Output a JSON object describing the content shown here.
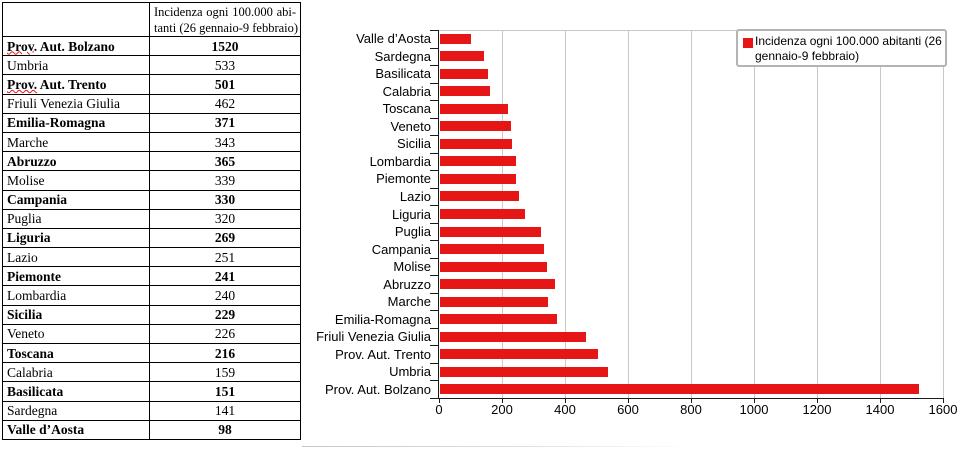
{
  "table": {
    "header": {
      "line1": "Incidenza ogni 100.000 abi-",
      "line2": "tanti (26 gennaio-9 febbraio)"
    },
    "rows": [
      {
        "region": "Prov. Aut. Bolzano",
        "value": "1520",
        "bold": true,
        "wavy_prefix": "Prov."
      },
      {
        "region": "Umbria",
        "value": "533",
        "bold": false
      },
      {
        "region": "Prov. Aut. Trento",
        "value": "501",
        "bold": true,
        "wavy_prefix": "Prov."
      },
      {
        "region": "Friuli Venezia Giulia",
        "value": "462",
        "bold": false
      },
      {
        "region": "Emilia-Romagna",
        "value": "371",
        "bold": true
      },
      {
        "region": "Marche",
        "value": "343",
        "bold": false
      },
      {
        "region": "Abruzzo",
        "value": "365",
        "bold": true
      },
      {
        "region": "Molise",
        "value": "339",
        "bold": false
      },
      {
        "region": "Campania",
        "value": "330",
        "bold": true
      },
      {
        "region": "Puglia",
        "value": "320",
        "bold": false
      },
      {
        "region": "Liguria",
        "value": "269",
        "bold": true
      },
      {
        "region": "Lazio",
        "value": "251",
        "bold": false
      },
      {
        "region": "Piemonte",
        "value": "241",
        "bold": true
      },
      {
        "region": "Lombardia",
        "value": "240",
        "bold": false
      },
      {
        "region": "Sicilia",
        "value": "229",
        "bold": true
      },
      {
        "region": "Veneto",
        "value": "226",
        "bold": false
      },
      {
        "region": "Toscana",
        "value": "216",
        "bold": true
      },
      {
        "region": "Calabria",
        "value": "159",
        "bold": false
      },
      {
        "region": "Basilicata",
        "value": "151",
        "bold": true
      },
      {
        "region": "Sardegna",
        "value": "141",
        "bold": false
      },
      {
        "region": "Valle d’Aosta",
        "value": "98",
        "bold": true
      }
    ]
  },
  "chart_data": {
    "type": "bar",
    "orientation": "horizontal",
    "categories": [
      "Valle d’Aosta",
      "Sardegna",
      "Basilicata",
      "Calabria",
      "Toscana",
      "Veneto",
      "Sicilia",
      "Lombardia",
      "Piemonte",
      "Lazio",
      "Liguria",
      "Puglia",
      "Campania",
      "Molise",
      "Abruzzo",
      "Marche",
      "Emilia-Romagna",
      "Friuli Venezia Giulia",
      "Prov. Aut. Trento",
      "Umbria",
      "Prov. Aut. Bolzano"
    ],
    "values": [
      98,
      141,
      151,
      159,
      216,
      226,
      229,
      240,
      241,
      251,
      269,
      320,
      330,
      339,
      365,
      343,
      371,
      462,
      501,
      533,
      1520
    ],
    "series_name": "Incidenza ogni 100.000 abitanti (26 gennaio-9 febbraio)",
    "legend": {
      "line1": "Incidenza ogni 100.000 abitanti (26",
      "line2": "gennaio-9 febbraio)",
      "position": "top-right"
    },
    "xlim": [
      0,
      1600
    ],
    "xticks": [
      0,
      200,
      400,
      600,
      800,
      1000,
      1200,
      1400,
      1600
    ],
    "grid": true,
    "bar_color": "#e61616",
    "colors": {
      "grid": "#c8c8c8",
      "axis": "#1a1a1a",
      "legend_border": "#b4b4b4"
    }
  }
}
